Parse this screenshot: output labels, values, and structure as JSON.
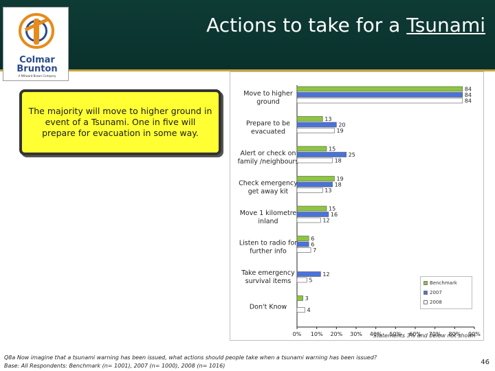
{
  "header": {
    "title_main": "Actions to take for a ",
    "title_underlined": "Tsunami"
  },
  "logo": {
    "line1": "Colmar",
    "line2": "Brunton",
    "tagline": "A Millward Brown Company"
  },
  "callout": {
    "text": "The majority will move to higher ground in event of a Tsunami. One in five will prepare for evacuation in some way."
  },
  "colors": {
    "benchmark": "#8dc63f",
    "y2007": "#4a73d9",
    "y2008": "#ffffff",
    "header_bg": "#0b3530",
    "callout_bg": "#ffff33"
  },
  "chart_data": {
    "type": "bar",
    "orientation": "horizontal",
    "categories": [
      [
        "Move to higher",
        "ground"
      ],
      [
        "Prepare to be",
        "evacuated"
      ],
      [
        "Alert or check on",
        "family /neighbours"
      ],
      [
        "Check emergency",
        "get away kit"
      ],
      [
        "Move 1 kilometre",
        "inland"
      ],
      [
        "Listen to radio for",
        "further info"
      ],
      [
        "Take emergency",
        "survival items"
      ],
      [
        "Don't Know"
      ]
    ],
    "series": [
      {
        "name": "Benchmark",
        "values": [
          84,
          13,
          15,
          19,
          15,
          6,
          null,
          3
        ]
      },
      {
        "name": "2007",
        "values": [
          84,
          20,
          25,
          18,
          16,
          6,
          12,
          null
        ]
      },
      {
        "name": "2008",
        "values": [
          84,
          19,
          18,
          13,
          12,
          7,
          5,
          4
        ]
      }
    ],
    "xlim": [
      0,
      90
    ],
    "xticks": [
      "0%",
      "10%",
      "20%",
      "30%",
      "40%",
      "50%",
      "60%",
      "70%",
      "80%",
      "90%"
    ],
    "legend_position": "bottom-right",
    "grid": false
  },
  "footer": {
    "note": "Statements 3% and below not shown",
    "question": "Q8a Now imagine that a tsunami warning has been issued, what actions should people take when a tsunami warning has been issued?",
    "base": "Base: All Respondents: Benchmark (n= 1001), 2007 (n= 1000), 2008 (n= 1016)",
    "page_number": "46"
  }
}
